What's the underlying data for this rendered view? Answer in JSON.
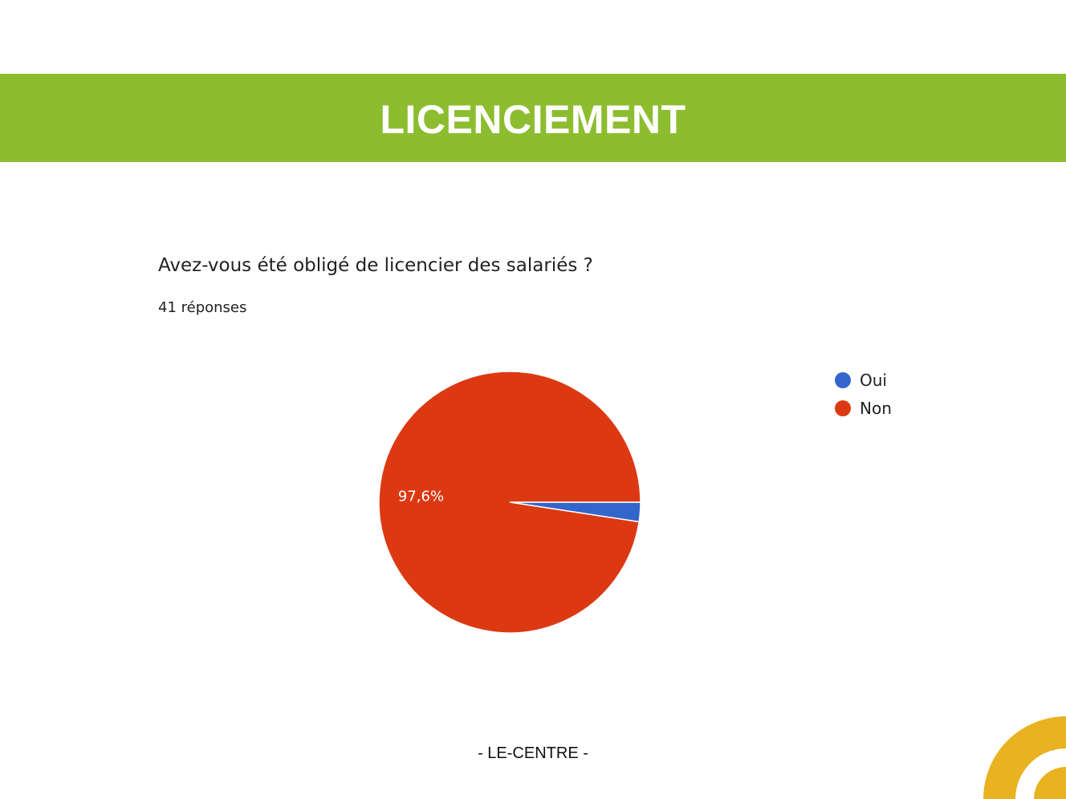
{
  "header": {
    "title": "LICENCIEMENT"
  },
  "chart_data": {
    "type": "pie",
    "title": "Avez-vous été obligé de licencier des salariés ?",
    "subtitle": "41 réponses",
    "categories": [
      "Oui",
      "Non"
    ],
    "values": [
      2.4,
      97.6
    ],
    "colors": [
      "#3366cc",
      "#dc3912"
    ],
    "data_labels": [
      "",
      "97,6%"
    ],
    "legend_position": "top-right"
  },
  "footer": {
    "text": "- LE-CENTRE -"
  },
  "colors": {
    "banner": "#8cbd2f",
    "logo": "#e8b221"
  }
}
